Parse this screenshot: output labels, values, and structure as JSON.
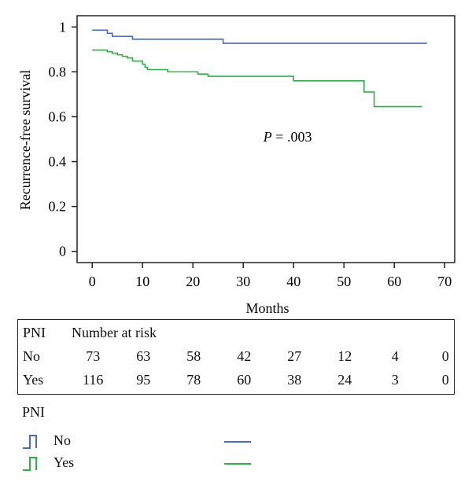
{
  "chart_data": {
    "type": "line",
    "xlabel": "Months",
    "ylabel": "Recurrence-free survival",
    "xlim": [
      -3,
      72
    ],
    "ylim": [
      -0.05,
      1.05
    ],
    "xticks": [
      0,
      10,
      20,
      30,
      40,
      50,
      60,
      70
    ],
    "yticks": [
      0,
      0.2,
      0.4,
      0.6,
      0.8,
      1
    ],
    "ytick_labels": [
      "0",
      "0.2",
      "0.4",
      "0.6",
      "0.8",
      "1"
    ],
    "annotation": {
      "italic": "P",
      "rest": " = .003",
      "x": 34,
      "y": 0.49
    },
    "series": [
      {
        "name": "No",
        "color": "#4a6bbf",
        "steps": [
          [
            0,
            0.986
          ],
          [
            3,
            0.972
          ],
          [
            4,
            0.958
          ],
          [
            8,
            0.945
          ],
          [
            26,
            0.927
          ],
          [
            66.5,
            0.927
          ]
        ]
      },
      {
        "name": "Yes",
        "color": "#2bb34a",
        "steps": [
          [
            0,
            0.897
          ],
          [
            3,
            0.89
          ],
          [
            4,
            0.883
          ],
          [
            5,
            0.876
          ],
          [
            6,
            0.869
          ],
          [
            7,
            0.862
          ],
          [
            8,
            0.848
          ],
          [
            10,
            0.834
          ],
          [
            10.5,
            0.82
          ],
          [
            11,
            0.81
          ],
          [
            15,
            0.8
          ],
          [
            21,
            0.79
          ],
          [
            23,
            0.78
          ],
          [
            40,
            0.76
          ],
          [
            54,
            0.71
          ],
          [
            56,
            0.645
          ],
          [
            65.5,
            0.645
          ]
        ]
      }
    ]
  },
  "risk_table": {
    "header_group": "PNI",
    "header_label": "Number at risk",
    "rows": [
      {
        "group": "No",
        "values": [
          "73",
          "63",
          "58",
          "42",
          "27",
          "12",
          "4",
          "0"
        ]
      },
      {
        "group": "Yes",
        "values": [
          "116",
          "95",
          "78",
          "60",
          "38",
          "24",
          "3",
          "0"
        ]
      }
    ]
  },
  "legend": {
    "title": "PNI",
    "items": [
      {
        "label": "No",
        "color": "#4a6bbf"
      },
      {
        "label": "Yes",
        "color": "#2bb34a"
      }
    ]
  }
}
